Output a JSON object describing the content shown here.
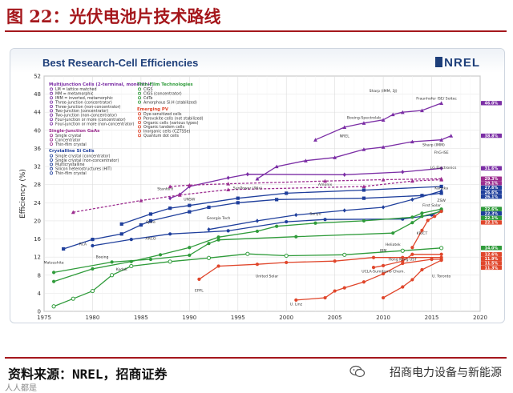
{
  "page": {
    "title": "图 22：光伏电池片技术路线",
    "source": "资料来源：NREL，招商证券",
    "watermark": "招商电力设备与新能源",
    "corner_mark": "人人都是"
  },
  "chart_data": {
    "type": "line",
    "title": "Best Research-Cell Efficiencies",
    "logo": "NREL",
    "xlabel": "",
    "ylabel": "Efficiency (%)",
    "xlim": [
      1975,
      2020
    ],
    "ylim": [
      0,
      52
    ],
    "xticks": [
      1975,
      1980,
      1985,
      1990,
      1995,
      2000,
      2005,
      2010,
      2015,
      2020
    ],
    "yticks": [
      0,
      4,
      8,
      12,
      16,
      20,
      24,
      28,
      32,
      36,
      40,
      44,
      48,
      52
    ],
    "grid": true,
    "legend": {
      "groups": [
        {
          "title": "Multijunction Cells (2-terminal, monolithic)",
          "color": "#7b2ea5",
          "entries": [
            "LM = lattice matched",
            "MM = metamorphic",
            "IMM = inverted, metamorphic",
            "Three-junction (concentrator)",
            "Three-junction (non-concentrator)",
            "Two-junction (concentrator)",
            "Two-junction (non-concentrator)",
            "Four-junction or more (concentrator)",
            "Four-junction or more (non-concentrator)"
          ]
        },
        {
          "title": "Single-Junction GaAs",
          "color": "#9c2d8f",
          "entries": [
            "Single crystal",
            "Concentrator",
            "Thin-film crystal"
          ]
        },
        {
          "title": "Crystalline Si Cells",
          "color": "#1f3f9c",
          "entries": [
            "Single crystal (concentrator)",
            "Single crystal (non-concentrator)",
            "Multicrystalline",
            "Silicon heterostructures (HIT)",
            "Thin-film crystal"
          ]
        },
        {
          "title": "Thin-Film Technologies",
          "color": "#2f9b3a",
          "entries": [
            "CIGS",
            "CIGS (concentrator)",
            "CdTe",
            "Amorphous Si:H (stabilized)"
          ]
        },
        {
          "title": "Emerging PV",
          "color": "#e0462b",
          "entries": [
            "Dye-sensitized cells",
            "Perovskite cells (not stabilized)",
            "Organic cells (various types)",
            "Organic tandem cells",
            "Inorganic cells (CZTSSe)",
            "Quantum dot cells"
          ]
        }
      ]
    },
    "series": [
      {
        "name": "Four-junction or more (concentrator)",
        "color": "#7b2ea5",
        "marker": "triangle",
        "points": [
          [
            2003,
            37.9
          ],
          [
            2006,
            40.7
          ],
          [
            2008,
            41.6
          ],
          [
            2010,
            42.3
          ],
          [
            2011,
            43.5
          ],
          [
            2012,
            44.0
          ],
          [
            2014,
            44.4
          ],
          [
            2016,
            46.0
          ]
        ],
        "end_label": "46.0%"
      },
      {
        "name": "Three-junction (non-concentrator)",
        "color": "#7b2ea5",
        "marker": "triangle",
        "points": [
          [
            1997,
            29.3
          ],
          [
            1999,
            32.0
          ],
          [
            2002,
            33.3
          ],
          [
            2005,
            34.0
          ],
          [
            2008,
            35.8
          ],
          [
            2010,
            36.3
          ],
          [
            2013,
            37.5
          ],
          [
            2016,
            37.9
          ],
          [
            2017,
            38.8
          ]
        ],
        "end_label": "38.8%"
      },
      {
        "name": "Two-junction (non-concentrator)",
        "color": "#7b2ea5",
        "marker": "diamond",
        "points": [
          [
            1988,
            25.0
          ],
          [
            1989,
            25.8
          ],
          [
            1990,
            27.6
          ],
          [
            1994,
            29.5
          ],
          [
            1996,
            30.3
          ],
          [
            2006,
            30.2
          ],
          [
            2012,
            30.8
          ],
          [
            2016,
            31.6
          ]
        ],
        "end_label": "31.6%"
      },
      {
        "name": "Single-junction GaAs (single crystal)",
        "color": "#9c2d8f",
        "marker": "triangle",
        "dashed": true,
        "points": [
          [
            1978,
            21.9
          ],
          [
            1985,
            24.5
          ],
          [
            1989,
            25.7
          ],
          [
            1994,
            26.9
          ],
          [
            2008,
            27.6
          ],
          [
            2013,
            28.8
          ],
          [
            2016,
            29.1
          ]
        ],
        "end_label": "29.1%"
      },
      {
        "name": "Single-junction GaAs (concentrator)",
        "color": "#9c2d8f",
        "marker": "triangle",
        "dashed": true,
        "points": [
          [
            1988,
            27.6
          ],
          [
            1990,
            27.9
          ],
          [
            1994,
            28.2
          ],
          [
            2004,
            28.8
          ],
          [
            2010,
            29.1
          ],
          [
            2016,
            29.3
          ]
        ],
        "end_label": "29.3%"
      },
      {
        "name": "Crystalline Si (concentrator)",
        "color": "#1f3f9c",
        "marker": "square",
        "points": [
          [
            1983,
            19.3
          ],
          [
            1986,
            21.5
          ],
          [
            1988,
            22.8
          ],
          [
            1990,
            23.4
          ],
          [
            1995,
            25.0
          ],
          [
            2000,
            26.1
          ],
          [
            2008,
            26.8
          ],
          [
            2016,
            27.6
          ]
        ],
        "end_label": "27.6%"
      },
      {
        "name": "Crystalline Si (single crystal)",
        "color": "#1f3f9c",
        "marker": "square",
        "points": [
          [
            1977,
            13.8
          ],
          [
            1980,
            15.9
          ],
          [
            1983,
            17.1
          ],
          [
            1985,
            19.1
          ],
          [
            1986,
            20.0
          ],
          [
            1990,
            22.0
          ],
          [
            1992,
            23.0
          ],
          [
            1995,
            24.0
          ],
          [
            1999,
            24.7
          ],
          [
            2008,
            25.0
          ],
          [
            2014,
            25.6
          ],
          [
            2016,
            26.1
          ]
        ],
        "end_label": "26.1%"
      },
      {
        "name": "Silicon heterostructures (HIT)",
        "color": "#1f3f9c",
        "marker": "diamond",
        "points": [
          [
            1992,
            18.1
          ],
          [
            1997,
            20.0
          ],
          [
            2001,
            21.3
          ],
          [
            2006,
            22.3
          ],
          [
            2010,
            23.0
          ],
          [
            2013,
            24.7
          ],
          [
            2016,
            26.6
          ]
        ],
        "end_label": "26.6%"
      },
      {
        "name": "Multicrystalline Si",
        "color": "#1f3f9c",
        "marker": "circle",
        "points": [
          [
            1980,
            14.5
          ],
          [
            1984,
            15.9
          ],
          [
            1988,
            17.1
          ],
          [
            1994,
            17.8
          ],
          [
            2000,
            19.8
          ],
          [
            2004,
            20.3
          ],
          [
            2012,
            20.4
          ],
          [
            2015,
            21.3
          ],
          [
            2016,
            22.3
          ]
        ],
        "end_label": "22.3%"
      },
      {
        "name": "CIGS",
        "color": "#2f9b3a",
        "marker": "circle",
        "points": [
          [
            1976,
            6.6
          ],
          [
            1980,
            9.4
          ],
          [
            1984,
            11.0
          ],
          [
            1987,
            12.5
          ],
          [
            1990,
            14.1
          ],
          [
            1993,
            16.4
          ],
          [
            1997,
            17.7
          ],
          [
            1999,
            18.8
          ],
          [
            2003,
            19.5
          ],
          [
            2008,
            20.0
          ],
          [
            2013,
            20.8
          ],
          [
            2014,
            21.7
          ],
          [
            2016,
            22.6
          ]
        ],
        "end_label": "22.6%"
      },
      {
        "name": "CdTe",
        "color": "#2f9b3a",
        "marker": "circle",
        "points": [
          [
            1976,
            8.6
          ],
          [
            1982,
            10.9
          ],
          [
            1986,
            11.5
          ],
          [
            1990,
            12.4
          ],
          [
            1992,
            15.0
          ],
          [
            1993,
            15.8
          ],
          [
            2001,
            16.5
          ],
          [
            2011,
            17.3
          ],
          [
            2013,
            19.6
          ],
          [
            2014,
            21.0
          ],
          [
            2016,
            22.1
          ]
        ],
        "end_label": "22.1%"
      },
      {
        "name": "Amorphous Si:H (stabilized)",
        "color": "#2f9b3a",
        "marker": "circle-open",
        "points": [
          [
            1976,
            1.1
          ],
          [
            1978,
            2.8
          ],
          [
            1980,
            4.5
          ],
          [
            1982,
            8.0
          ],
          [
            1984,
            10.0
          ],
          [
            1988,
            11.0
          ],
          [
            1992,
            11.8
          ],
          [
            1996,
            12.7
          ],
          [
            2000,
            12.3
          ],
          [
            2006,
            12.5
          ],
          [
            2012,
            13.4
          ],
          [
            2016,
            14.0
          ]
        ],
        "end_label": "14.0%"
      },
      {
        "name": "Perovskite cells",
        "color": "#e0462b",
        "marker": "circle",
        "points": [
          [
            2013,
            14.1
          ],
          [
            2014,
            17.9
          ],
          [
            2014.6,
            20.1
          ],
          [
            2015.3,
            21.0
          ],
          [
            2016,
            22.1
          ]
        ],
        "end_label": "22.1%"
      },
      {
        "name": "Organic cells",
        "color": "#e0462b",
        "marker": "circle",
        "points": [
          [
            2001,
            2.5
          ],
          [
            2004,
            3.0
          ],
          [
            2005,
            4.5
          ],
          [
            2006,
            5.2
          ],
          [
            2008,
            6.5
          ],
          [
            2010,
            8.3
          ],
          [
            2012,
            10.6
          ],
          [
            2015,
            11.5
          ],
          [
            2016,
            11.5
          ]
        ],
        "end_label": "11.5%"
      },
      {
        "name": "Dye-sensitized cells",
        "color": "#e0462b",
        "marker": "circle",
        "points": [
          [
            1991,
            7.1
          ],
          [
            1993,
            10.0
          ],
          [
            1997,
            10.4
          ],
          [
            2000,
            10.8
          ],
          [
            2005,
            11.1
          ],
          [
            2009,
            11.9
          ],
          [
            2012,
            11.9
          ],
          [
            2016,
            11.9
          ]
        ],
        "end_label": "11.9%"
      },
      {
        "name": "Inorganic cells (CZTSSe)",
        "color": "#e0462b",
        "marker": "circle",
        "points": [
          [
            2009,
            9.7
          ],
          [
            2010,
            10.1
          ],
          [
            2012,
            11.1
          ],
          [
            2013,
            12.6
          ],
          [
            2016,
            12.6
          ]
        ],
        "end_label": "12.6%"
      },
      {
        "name": "Quantum dot cells",
        "color": "#e0462b",
        "marker": "circle",
        "points": [
          [
            2010,
            3.0
          ],
          [
            2012,
            5.4
          ],
          [
            2013,
            7.0
          ],
          [
            2014,
            9.2
          ],
          [
            2016,
            11.3
          ]
        ],
        "end_label": "11.3%"
      }
    ],
    "annotations": [
      {
        "text": "Sharp (IMM, 3J)",
        "x": 2010,
        "y": 48.5,
        "color": "#333"
      },
      {
        "text": "Fraunhofer ISE/ Soitec",
        "x": 2015.5,
        "y": 46.8,
        "color": "#333"
      },
      {
        "text": "Boeing-Spectrolab",
        "x": 2008,
        "y": 42.5,
        "color": "#333"
      },
      {
        "text": "NREL",
        "x": 2006,
        "y": 38.5,
        "color": "#333"
      },
      {
        "text": "Sharp (IMM)",
        "x": 2015.2,
        "y": 36.5,
        "color": "#333"
      },
      {
        "text": "FhG-ISE",
        "x": 2016,
        "y": 34.8,
        "color": "#333"
      },
      {
        "text": "LG Electronics",
        "x": 2016.2,
        "y": 31.5,
        "color": "#333"
      },
      {
        "text": "Kaneka",
        "x": 2016,
        "y": 27.0,
        "color": "#333"
      },
      {
        "text": "First Solar",
        "x": 2015,
        "y": 23.2,
        "color": "#333"
      },
      {
        "text": "ZSW",
        "x": 2016,
        "y": 24.2,
        "color": "#333"
      },
      {
        "text": "Stanford",
        "x": 1987.5,
        "y": 26.8,
        "color": "#333"
      },
      {
        "text": "Spire",
        "x": 1986,
        "y": 19.5,
        "color": "#333"
      },
      {
        "text": "UNSW",
        "x": 1990,
        "y": 24.5,
        "color": "#333"
      },
      {
        "text": "SunPower (96x)",
        "x": 1996,
        "y": 27.0,
        "color": "#333"
      },
      {
        "text": "Amonix",
        "x": 2004,
        "y": 27.8,
        "color": "#333"
      },
      {
        "text": "Sanyo",
        "x": 2003,
        "y": 21.3,
        "color": "#333"
      },
      {
        "text": "Georgia Tech",
        "x": 1993,
        "y": 20.3,
        "color": "#333"
      },
      {
        "text": "RCA",
        "x": 1979,
        "y": 14.6,
        "color": "#333"
      },
      {
        "text": "Boeing",
        "x": 1981,
        "y": 11.8,
        "color": "#333"
      },
      {
        "text": "Kodak",
        "x": 1983,
        "y": 9.0,
        "color": "#333"
      },
      {
        "text": "Matsushita",
        "x": 1976,
        "y": 10.5,
        "color": "#333"
      },
      {
        "text": "ARCO",
        "x": 1986,
        "y": 15.8,
        "color": "#333"
      },
      {
        "text": "United Solar",
        "x": 1998,
        "y": 7.5,
        "color": "#333"
      },
      {
        "text": "EPFL",
        "x": 1991,
        "y": 4.3,
        "color": "#333"
      },
      {
        "text": "U. Linz",
        "x": 2001,
        "y": 1.3,
        "color": "#333"
      },
      {
        "text": "UCLA-Sumitomo Chem.",
        "x": 2010,
        "y": 8.6,
        "color": "#333"
      },
      {
        "text": "Hong Kong UST",
        "x": 2012,
        "y": 11.2,
        "color": "#333"
      },
      {
        "text": "U. Toronto",
        "x": 2016,
        "y": 7.5,
        "color": "#333"
      },
      {
        "text": "Heliatek",
        "x": 2011,
        "y": 14.5,
        "color": "#333"
      },
      {
        "text": "IBM",
        "x": 2010,
        "y": 13.2,
        "color": "#333"
      },
      {
        "text": "KRICT",
        "x": 2014,
        "y": 17.0,
        "color": "#333"
      }
    ]
  }
}
